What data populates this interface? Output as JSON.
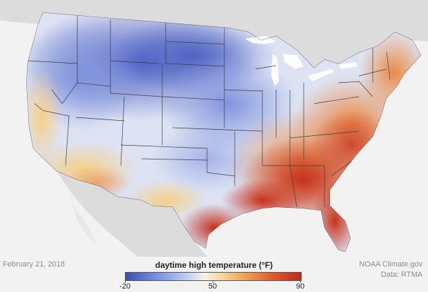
{
  "date": "February 21, 2018",
  "legend": {
    "title": "daytime high temperature (°F)",
    "min_label": "-20",
    "mid_label": "50",
    "max_label": "90",
    "colors": [
      "#3c4fb4",
      "#6f86dc",
      "#b4c3f0",
      "#f3f1e6",
      "#f6d48e",
      "#f0a257",
      "#e2622f",
      "#c02918"
    ]
  },
  "credits": {
    "source": "NOAA Climate.gov",
    "data": "Data: RTMA"
  }
}
